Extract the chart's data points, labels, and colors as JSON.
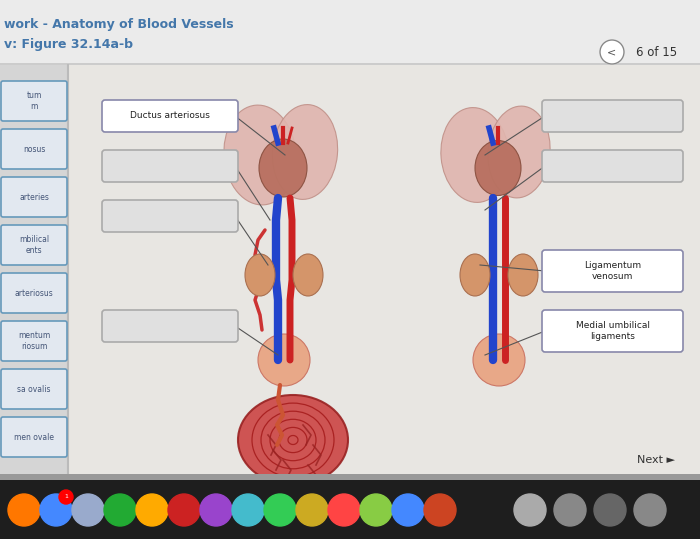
{
  "title1": "work - Anatomy of Blood Vessels",
  "title2": "v: Figure 32.14a-b",
  "page_info": "6 of 15",
  "bg_color": "#e8e8e8",
  "content_bg": "#f0efee",
  "left_sidebar_bg": "#d8d8d8",
  "header_bg": "#f5f5f5",
  "title_color": "#4477aa",
  "subtitle_color": "#4477aa",
  "label_color": "#445577",
  "left_labels": [
    "tum\nm",
    "nosus",
    "arteries",
    "mbilical\nents",
    "arteriosus",
    "mentum\nriosum",
    "sa ovalis",
    "men ovale"
  ],
  "left_box_color_bg": "#e2e8f0",
  "left_box_color_border": "#6699bb",
  "label_box_text_color": "#334466",
  "blank_box_bg": "#e0e0e0",
  "blank_box_border": "#aaaaaa",
  "filled_box_bg": "#ffffff",
  "filled_box_border": "#8888aa",
  "line_color": "#555555",
  "dock_bg": "#1e1e1e",
  "bottom_gray": "#aaaaaa",
  "next_text": "Next ►"
}
